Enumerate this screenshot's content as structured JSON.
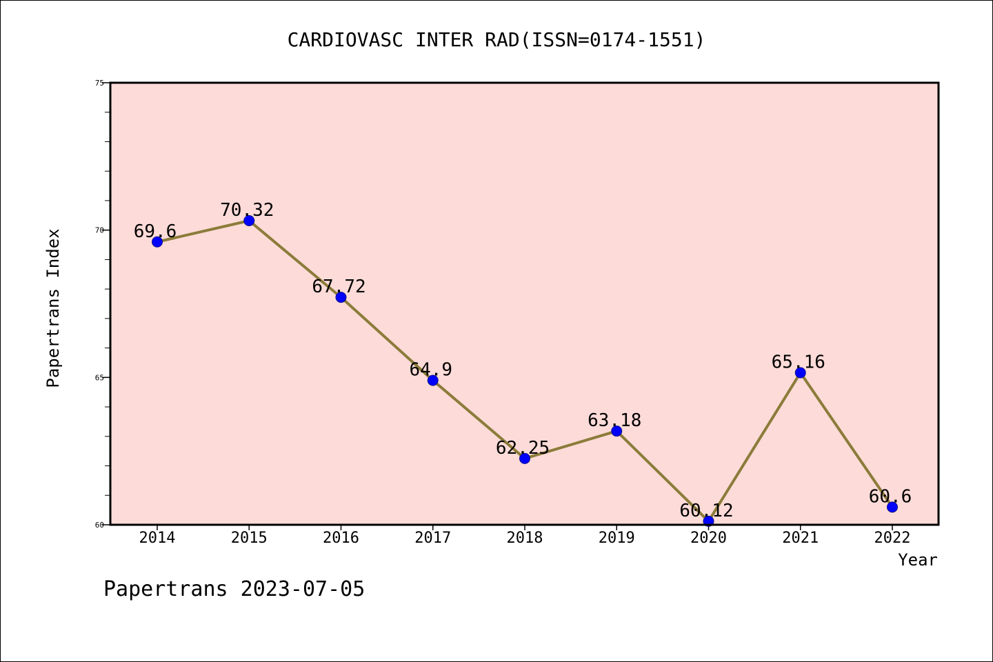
{
  "chart_data": {
    "type": "line",
    "title": "CARDIOVASC INTER RAD(ISSN=0174-1551)",
    "xlabel": "Year",
    "ylabel": "Papertrans Index",
    "categories": [
      "2014",
      "2015",
      "2016",
      "2017",
      "2018",
      "2019",
      "2020",
      "2021",
      "2022"
    ],
    "series": [
      {
        "values": [
          69.6,
          70.32,
          67.72,
          64.9,
          62.25,
          63.18,
          60.12,
          65.16,
          60.6
        ],
        "data_labels": [
          "69.6",
          "70.32",
          "67.72",
          "64.9",
          "62.25",
          "63.18",
          "60.12",
          "65.16",
          "60.6"
        ]
      }
    ],
    "ylim": [
      60,
      75
    ],
    "y_ticks": [
      60,
      65,
      70,
      75
    ],
    "y_tick_labels": [
      "60",
      "65",
      "70",
      "75"
    ],
    "y_minor_step": 1,
    "grid": false,
    "colors": {
      "plot_background": "#fddbd8",
      "line": "#8b7c3a",
      "marker": "#0000ff",
      "marker_edge": "#0d0d8a",
      "axis": "#000000"
    }
  },
  "footer": {
    "watermark": "Papertrans 2023-07-05"
  }
}
